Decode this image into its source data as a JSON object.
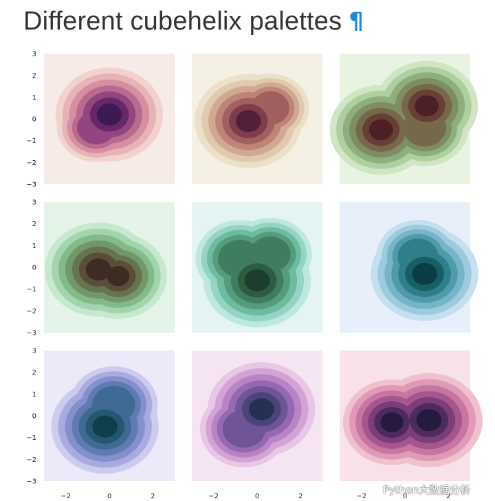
{
  "heading": {
    "title": "Different cubehelix palettes",
    "anchor_symbol": "¶"
  },
  "watermark": {
    "text": "Python大数据分析"
  },
  "chart_data": {
    "type": "heatmap",
    "subtype": "bivariate kde contour grid (3x3)",
    "grid": {
      "rows": 3,
      "cols": 3
    },
    "xlim": [
      -3,
      3
    ],
    "ylim": [
      -3,
      3
    ],
    "xticks": [
      -2,
      0,
      2
    ],
    "yticks": [
      3,
      2,
      1,
      0,
      -1,
      -2,
      -3
    ],
    "levels": 8,
    "panels": [
      {
        "palette": [
          "#f7ebe8",
          "#f2d2cf",
          "#e8b3b6",
          "#d58fa0",
          "#b96b8f",
          "#93457f",
          "#68276b",
          "#3d1a52"
        ],
        "centers": [
          {
            "x": 0,
            "y": 0.2,
            "weight": 1.0
          },
          {
            "x": -0.6,
            "y": -0.4,
            "weight": 0.4
          }
        ]
      },
      {
        "palette": [
          "#f5f0e4",
          "#ece0c9",
          "#e0c9ae",
          "#d1a991",
          "#bd8477",
          "#a0605f",
          "#7d3d4c",
          "#53203b"
        ],
        "centers": [
          {
            "x": -0.4,
            "y": -0.1,
            "weight": 1.0
          },
          {
            "x": 0.6,
            "y": 0.5,
            "weight": 0.4
          }
        ]
      },
      {
        "palette": [
          "#e9f3e1",
          "#cfe5c3",
          "#aecfa0",
          "#8fae7e",
          "#7e8d62",
          "#76684b",
          "#683f35",
          "#4d1f27"
        ],
        "centers": [
          {
            "x": -1.1,
            "y": -0.5,
            "weight": 0.9
          },
          {
            "x": 1.0,
            "y": 0.6,
            "weight": 0.9
          },
          {
            "x": 0.9,
            "y": -0.4,
            "weight": 0.6
          }
        ]
      },
      {
        "palette": [
          "#e4f4e9",
          "#c6e8cf",
          "#a2d5ad",
          "#84b98a",
          "#71976a",
          "#66734f",
          "#5a4e3a",
          "#3d2c24"
        ],
        "centers": [
          {
            "x": -0.5,
            "y": -0.1,
            "weight": 1.0
          },
          {
            "x": 0.4,
            "y": -0.4,
            "weight": 0.8
          }
        ]
      },
      {
        "palette": [
          "#e3f4f3",
          "#bfe7e1",
          "#94d4c5",
          "#6ebb9f",
          "#549c7c",
          "#3f7d5e",
          "#2e5c42",
          "#1d3d2e"
        ],
        "centers": [
          {
            "x": 0,
            "y": -0.6,
            "weight": 1.0
          },
          {
            "x": -0.8,
            "y": 0.4,
            "weight": 0.6
          },
          {
            "x": 0.6,
            "y": 0.6,
            "weight": 0.5
          }
        ]
      },
      {
        "palette": [
          "#e7f0fa",
          "#c5dfee",
          "#9ccbde",
          "#76b4c8",
          "#4f9aab",
          "#2f7e89",
          "#175f66",
          "#0b3e44"
        ],
        "centers": [
          {
            "x": 0.9,
            "y": -0.3,
            "weight": 1.0
          },
          {
            "x": 0.6,
            "y": 0.5,
            "weight": 0.5
          }
        ]
      },
      {
        "palette": [
          "#ece9f8",
          "#cdcbee",
          "#a9abe0",
          "#848fcc",
          "#5f7bb2",
          "#3f6a93",
          "#245872",
          "#0f3e4d"
        ],
        "centers": [
          {
            "x": -0.2,
            "y": -0.5,
            "weight": 1.0
          },
          {
            "x": 0.2,
            "y": 0.5,
            "weight": 0.6
          }
        ]
      },
      {
        "palette": [
          "#f5e5f3",
          "#e8c6e6",
          "#d4a3d6",
          "#b884c6",
          "#9569b1",
          "#6f5496",
          "#4a4478",
          "#253153"
        ],
        "centers": [
          {
            "x": 0.2,
            "y": 0.3,
            "weight": 1.0
          },
          {
            "x": -0.6,
            "y": -0.6,
            "weight": 0.6
          }
        ]
      },
      {
        "palette": [
          "#f8e2e8",
          "#efc1cf",
          "#e09ab7",
          "#c776a2",
          "#a6568e",
          "#7c3d78",
          "#4f2a5e",
          "#261a3f"
        ],
        "centers": [
          {
            "x": 1.1,
            "y": -0.2,
            "weight": 1.0
          },
          {
            "x": -0.6,
            "y": -0.3,
            "weight": 0.8
          }
        ]
      }
    ]
  }
}
